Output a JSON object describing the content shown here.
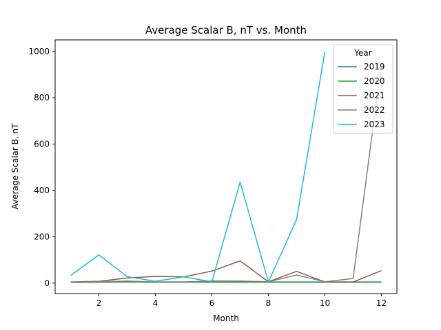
{
  "chart_data": {
    "type": "line",
    "title": "Average Scalar B, nT vs. Month",
    "xlabel": "Month",
    "ylabel": "Average Scalar B, nT",
    "xlim": [
      0.45,
      12.55
    ],
    "ylim": [
      -45,
      1050
    ],
    "xticks": [
      2,
      4,
      6,
      8,
      10,
      12
    ],
    "yticks": [
      0,
      200,
      400,
      600,
      800,
      1000
    ],
    "grid": false,
    "legend": {
      "title": "Year",
      "placement": "top-right"
    },
    "series": [
      {
        "name": "2019",
        "color": "#1f77b4",
        "x": [
          1,
          2,
          3,
          4,
          5,
          6,
          7,
          8,
          9,
          10,
          11,
          12
        ],
        "y": [
          4,
          5,
          5,
          5,
          5,
          5,
          5,
          5,
          5,
          5,
          5,
          5
        ]
      },
      {
        "name": "2020",
        "color": "#2ca02c",
        "x": [
          1,
          2,
          3,
          4,
          5,
          6,
          7,
          8,
          9,
          10,
          11,
          12
        ],
        "y": [
          3,
          4,
          5,
          4,
          4,
          4,
          4,
          4,
          4,
          4,
          4,
          4
        ]
      },
      {
        "name": "2021",
        "color": "#8c564b",
        "x": [
          1,
          2,
          3,
          4,
          5,
          6,
          7,
          8,
          9,
          10,
          11,
          12
        ],
        "y": [
          5,
          8,
          22,
          29,
          27,
          52,
          96,
          6,
          51,
          5,
          5,
          54
        ]
      },
      {
        "name": "2022",
        "color": "#7f7f7f",
        "x": [
          1,
          2,
          3,
          4,
          5,
          6,
          7,
          8,
          9,
          10,
          11,
          12
        ],
        "y": [
          4,
          6,
          9,
          5,
          5,
          10,
          9,
          6,
          35,
          6,
          20,
          945
        ]
      },
      {
        "name": "2023",
        "color": "#17becf",
        "x": [
          1,
          2,
          3,
          4,
          5,
          6,
          7,
          8,
          9,
          10
        ],
        "y": [
          33,
          122,
          28,
          8,
          27,
          6,
          436,
          5,
          275,
          1000
        ]
      }
    ]
  }
}
